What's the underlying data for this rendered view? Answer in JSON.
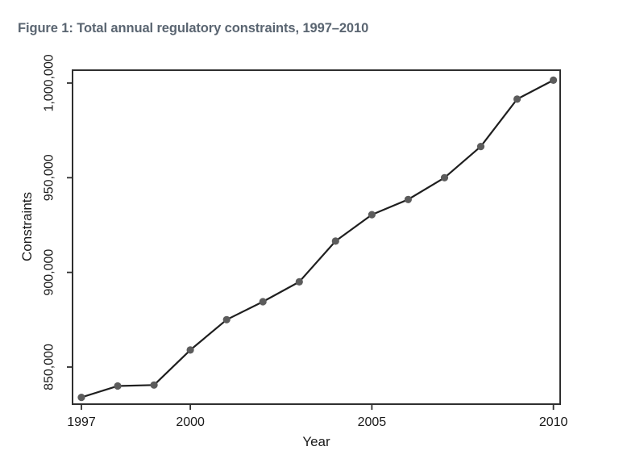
{
  "figure": {
    "title": "Figure 1: Total annual regulatory constraints, 1997–2010"
  },
  "chart_data": {
    "type": "line",
    "title": "Figure 1: Total annual regulatory constraints, 1997–2010",
    "xlabel": "Year",
    "ylabel": "Constraints",
    "x": [
      1997,
      1998,
      1999,
      2000,
      2001,
      2002,
      2003,
      2004,
      2005,
      2006,
      2007,
      2008,
      2009,
      2010
    ],
    "values": [
      834000,
      840000,
      840500,
      859000,
      875000,
      884500,
      895000,
      916500,
      930500,
      938500,
      950000,
      966500,
      991500,
      1001500
    ],
    "x_ticks": {
      "values": [
        1997,
        2000,
        2005,
        2010
      ],
      "labels": [
        "1997",
        "2000",
        "2005",
        "2010"
      ]
    },
    "y_ticks": {
      "values": [
        850000,
        900000,
        950000,
        1000000
      ],
      "labels": [
        "850,000",
        "900,000",
        "950,000",
        "1,000,000"
      ]
    },
    "xlim": [
      1996.756,
      2010.186
    ],
    "ylim": [
      830400,
      1006800
    ],
    "grid": false,
    "legend_position": "none",
    "markers": true,
    "colors": {
      "line": "#1f1f1f",
      "marker": "#5c5c5c",
      "box": "#2f2f2f",
      "axis_text": "#1a1a1a",
      "title_text": "#5a6571"
    }
  }
}
